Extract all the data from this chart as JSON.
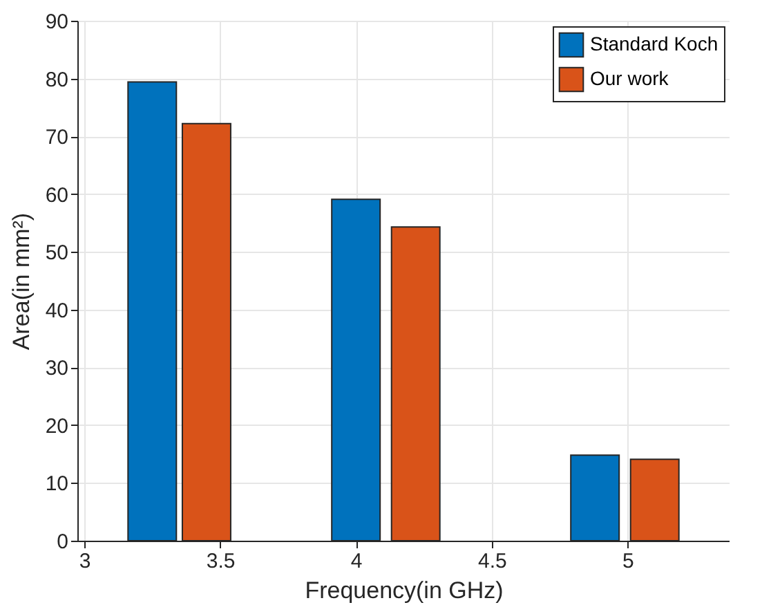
{
  "chart_data": {
    "type": "bar",
    "xlabel": "Frequency(in GHz)",
    "ylabel": "Area(in mm²)",
    "xlim": [
      3,
      5.35
    ],
    "xticks": [
      3,
      3.5,
      4,
      4.5,
      5
    ],
    "ylim": [
      0,
      90
    ],
    "yticks": [
      0,
      10,
      20,
      30,
      40,
      50,
      60,
      70,
      80,
      90
    ],
    "grid": true,
    "legend": "top right",
    "series": [
      {
        "name": "Standard Koch",
        "color": "#0072bd",
        "x": [
          3.25,
          4,
          4.88
        ],
        "values": [
          79.4,
          59.1,
          14.8
        ]
      },
      {
        "name": "Our work",
        "color": "#d95319",
        "x": [
          3.45,
          4.22,
          5.1
        ],
        "values": [
          72.2,
          54.3,
          14.1
        ]
      }
    ]
  }
}
